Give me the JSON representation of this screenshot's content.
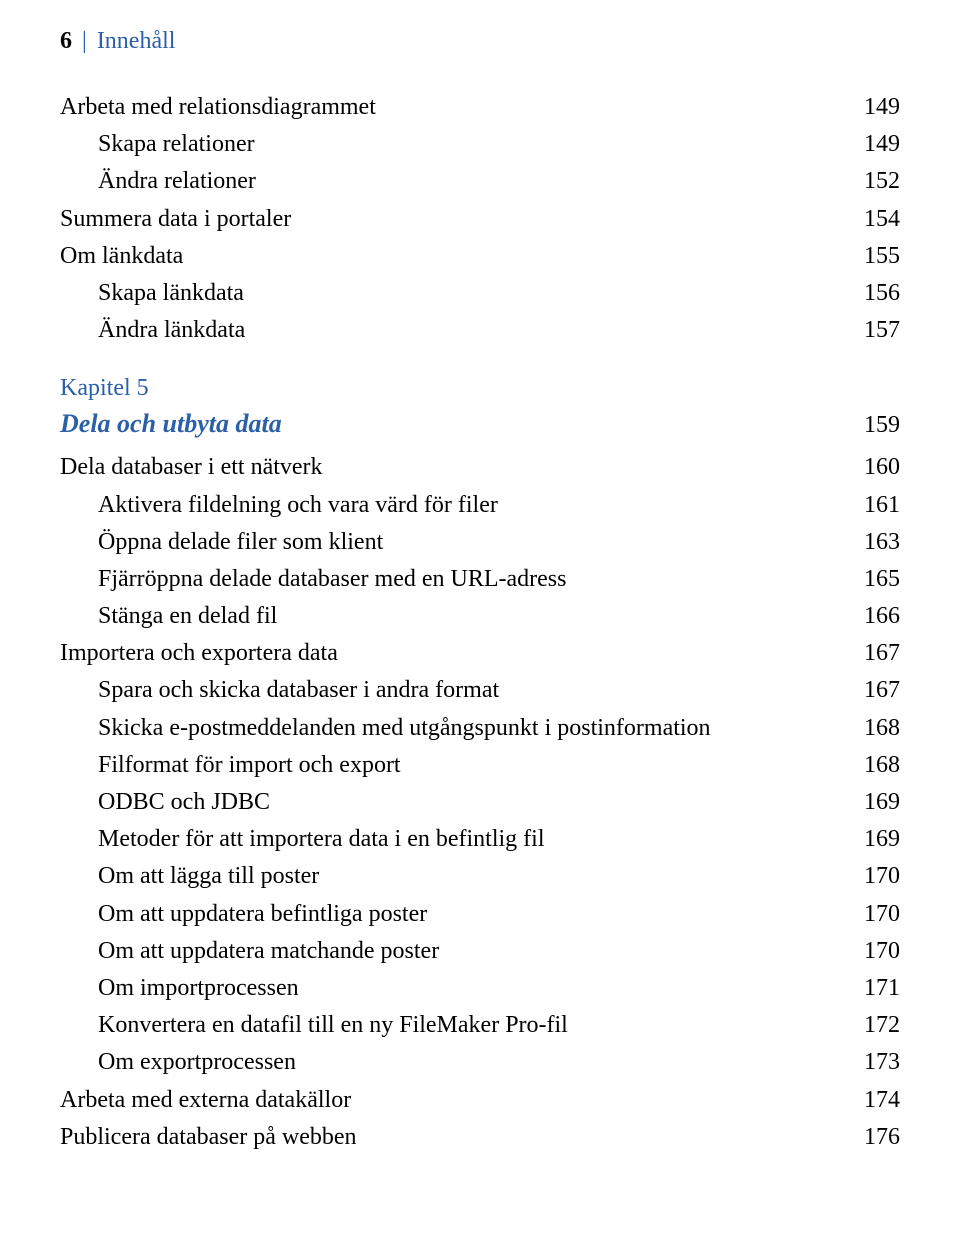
{
  "header": {
    "page_number": "6",
    "separator": "|",
    "title": "Innehåll"
  },
  "sections": [
    {
      "type": "entries",
      "entries": [
        {
          "label": "Arbeta med relationsdiagrammet",
          "page": "149",
          "indent": 0
        },
        {
          "label": "Skapa relationer",
          "page": "149",
          "indent": 1
        },
        {
          "label": "Ändra relationer",
          "page": "152",
          "indent": 1
        },
        {
          "label": "Summera data i portaler",
          "page": "154",
          "indent": 0
        },
        {
          "label": "Om länkdata",
          "page": "155",
          "indent": 0
        },
        {
          "label": "Skapa länkdata",
          "page": "156",
          "indent": 1
        },
        {
          "label": "Ändra länkdata",
          "page": "157",
          "indent": 1
        }
      ]
    },
    {
      "type": "chapter",
      "chapter_label": "Kapitel 5",
      "chapter_title": "Dela och utbyta data",
      "chapter_page": "159",
      "entries": [
        {
          "label": "Dela databaser i ett nätverk",
          "page": "160",
          "indent": 0
        },
        {
          "label": "Aktivera fildelning och vara värd för filer",
          "page": "161",
          "indent": 1
        },
        {
          "label": "Öppna delade filer som klient",
          "page": "163",
          "indent": 1
        },
        {
          "label": "Fjärröppna delade databaser med en URL-adress",
          "page": "165",
          "indent": 1
        },
        {
          "label": "Stänga en delad fil",
          "page": "166",
          "indent": 1
        },
        {
          "label": "Importera och exportera data",
          "page": "167",
          "indent": 0
        },
        {
          "label": "Spara och skicka databaser i andra format",
          "page": "167",
          "indent": 1
        },
        {
          "label": "Skicka e-postmeddelanden med utgångspunkt i postinformation",
          "page": "168",
          "indent": 1
        },
        {
          "label": "Filformat för import och export",
          "page": "168",
          "indent": 1
        },
        {
          "label": "ODBC och JDBC",
          "page": "169",
          "indent": 1
        },
        {
          "label": "Metoder för att importera data i en befintlig fil",
          "page": "169",
          "indent": 1
        },
        {
          "label": "Om att lägga till poster",
          "page": "170",
          "indent": 1
        },
        {
          "label": "Om att uppdatera befintliga poster",
          "page": "170",
          "indent": 1
        },
        {
          "label": "Om att uppdatera matchande poster",
          "page": "170",
          "indent": 1
        },
        {
          "label": "Om importprocessen",
          "page": "171",
          "indent": 1
        },
        {
          "label": "Konvertera en datafil till en ny FileMaker Pro-fil",
          "page": "172",
          "indent": 1
        },
        {
          "label": "Om exportprocessen",
          "page": "173",
          "indent": 1
        },
        {
          "label": "Arbeta med externa datakällor",
          "page": "174",
          "indent": 0
        },
        {
          "label": "Publicera databaser på webben",
          "page": "176",
          "indent": 0
        }
      ]
    }
  ]
}
